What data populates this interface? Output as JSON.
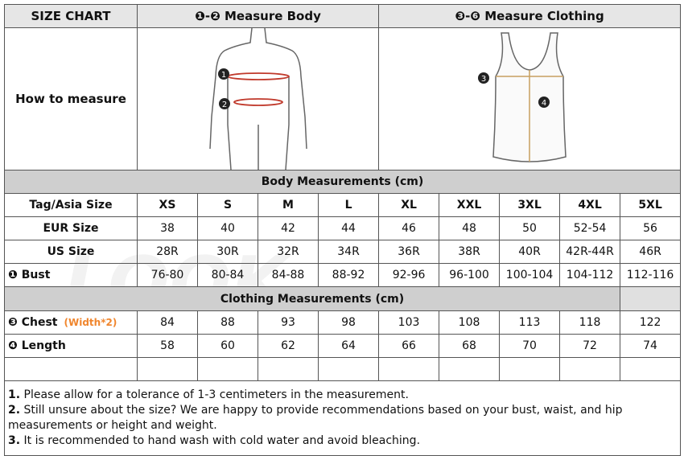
{
  "header": {
    "title": "SIZE CHART",
    "body_label": "❶-❷ Measure Body",
    "clothing_label": "❸-❻ Measure Clothing"
  },
  "how_to_measure": "How to measure",
  "body_section": "Body Measurements (cm)",
  "clothing_section": "Clothing Measurements  (cm)",
  "sizes_label": "Tag/Asia Size",
  "sizes": [
    "XS",
    "S",
    "M",
    "L",
    "XL",
    "XXL",
    "3XL",
    "4XL",
    "5XL"
  ],
  "eur_label": "EUR Size",
  "eur": [
    "38",
    "40",
    "42",
    "44",
    "46",
    "48",
    "50",
    "52-54",
    "56"
  ],
  "us_label": "US Size",
  "us": [
    "28R",
    "30R",
    "32R",
    "34R",
    "36R",
    "38R",
    "40R",
    "42R-44R",
    "46R"
  ],
  "bust_label": "❶ Bust",
  "bust": [
    "76-80",
    "80-84",
    "84-88",
    "88-92",
    "92-96",
    "96-100",
    "100-104",
    "104-112",
    "112-116"
  ],
  "chest_label": "❸ Chest",
  "chest_note": "(Width*2)",
  "chest": [
    "84",
    "88",
    "93",
    "98",
    "103",
    "108",
    "113",
    "118",
    "122"
  ],
  "length_label": "❹ Length",
  "length": [
    "58",
    "60",
    "62",
    "64",
    "66",
    "68",
    "70",
    "72",
    "74"
  ],
  "markers": {
    "m1": "1",
    "m2": "2",
    "m3": "3",
    "m4": "4"
  },
  "notes": [
    {
      "num": "1.",
      "text": " Please allow for a tolerance of 1-3 centimeters in the measurement."
    },
    {
      "num": "2.",
      "text": " Still unsure about the size? We are happy to provide recommendations based on your bust, waist, and hip measurements or height and weight."
    },
    {
      "num": "3.",
      "text": " It is recommended to hand wash with cold water and avoid bleaching."
    }
  ],
  "colors": {
    "accent": "#f0862e",
    "measure_line": "#c0392b",
    "clothing_line": "#c8a060"
  }
}
